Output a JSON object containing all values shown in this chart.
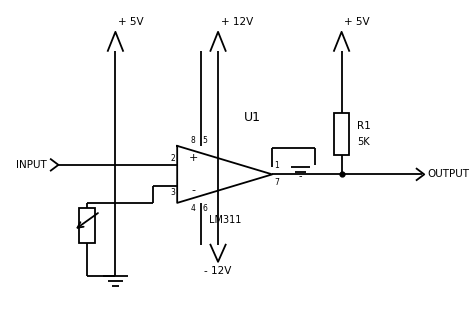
{
  "background_color": "#ffffff",
  "line_color": "#000000",
  "line_width": 1.3,
  "labels": {
    "input": "INPUT",
    "output": "OUTPUT",
    "v_plus5_left": "+ 5V",
    "v_plus12": "+ 12V",
    "v_plus5_right": "+ 5V",
    "v_minus12": "- 12V",
    "u1": "U1",
    "lm311": "LM311",
    "r1": "R1",
    "r1_val": "5K",
    "pin2": "2",
    "pin3": "3",
    "pin1": "1",
    "pin7": "7",
    "pin8": "8",
    "pin5": "5",
    "pin4": "4",
    "pin6": "6",
    "plus_sign": "+",
    "minus_sign": "-"
  }
}
